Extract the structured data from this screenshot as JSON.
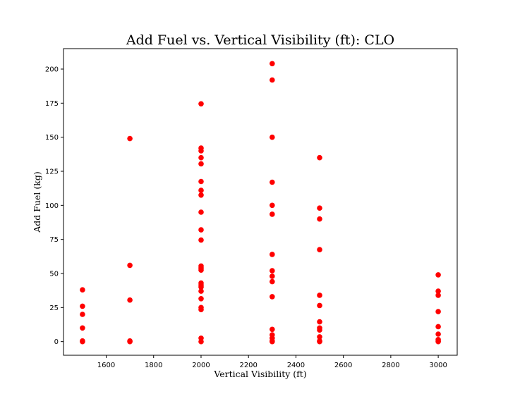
{
  "chart_data": {
    "type": "scatter",
    "title": "Add Fuel vs. Vertical Visibility (ft): CLO",
    "xlabel": "Vertical Visibility (ft)",
    "ylabel": "Add Fuel (kg)",
    "xlim": [
      1420,
      3080
    ],
    "ylim": [
      -10,
      215
    ],
    "xticks": [
      1600,
      1800,
      2000,
      2200,
      2400,
      2600,
      2800,
      3000
    ],
    "yticks": [
      0,
      25,
      50,
      75,
      100,
      125,
      150,
      175,
      200
    ],
    "grid": false,
    "marker_color": "#ff0000",
    "points": [
      {
        "x": 1500,
        "y": 38
      },
      {
        "x": 1500,
        "y": 26
      },
      {
        "x": 1500,
        "y": 20
      },
      {
        "x": 1500,
        "y": 10
      },
      {
        "x": 1500,
        "y": 0.5
      },
      {
        "x": 1500,
        "y": 0
      },
      {
        "x": 1700,
        "y": 149
      },
      {
        "x": 1700,
        "y": 56
      },
      {
        "x": 1700,
        "y": 30.5
      },
      {
        "x": 1700,
        "y": 0.5
      },
      {
        "x": 1700,
        "y": 0
      },
      {
        "x": 2000,
        "y": 174.5
      },
      {
        "x": 2000,
        "y": 142
      },
      {
        "x": 2000,
        "y": 140
      },
      {
        "x": 2000,
        "y": 135
      },
      {
        "x": 2000,
        "y": 130.5
      },
      {
        "x": 2000,
        "y": 117.5
      },
      {
        "x": 2000,
        "y": 111
      },
      {
        "x": 2000,
        "y": 107.5
      },
      {
        "x": 2000,
        "y": 95
      },
      {
        "x": 2000,
        "y": 82
      },
      {
        "x": 2000,
        "y": 74.5
      },
      {
        "x": 2000,
        "y": 55.5
      },
      {
        "x": 2000,
        "y": 54
      },
      {
        "x": 2000,
        "y": 52.5
      },
      {
        "x": 2000,
        "y": 43
      },
      {
        "x": 2000,
        "y": 41.5
      },
      {
        "x": 2000,
        "y": 40
      },
      {
        "x": 2000,
        "y": 37
      },
      {
        "x": 2000,
        "y": 31.5
      },
      {
        "x": 2000,
        "y": 25
      },
      {
        "x": 2000,
        "y": 23.5
      },
      {
        "x": 2000,
        "y": 2.5
      },
      {
        "x": 2000,
        "y": 0
      },
      {
        "x": 2300,
        "y": 204
      },
      {
        "x": 2300,
        "y": 192
      },
      {
        "x": 2300,
        "y": 150
      },
      {
        "x": 2300,
        "y": 117
      },
      {
        "x": 2300,
        "y": 100
      },
      {
        "x": 2300,
        "y": 93.5
      },
      {
        "x": 2300,
        "y": 64
      },
      {
        "x": 2300,
        "y": 52
      },
      {
        "x": 2300,
        "y": 48
      },
      {
        "x": 2300,
        "y": 44
      },
      {
        "x": 2300,
        "y": 33
      },
      {
        "x": 2300,
        "y": 9
      },
      {
        "x": 2300,
        "y": 5
      },
      {
        "x": 2300,
        "y": 2.5
      },
      {
        "x": 2300,
        "y": 0.5
      },
      {
        "x": 2300,
        "y": 0
      },
      {
        "x": 2500,
        "y": 135
      },
      {
        "x": 2500,
        "y": 98
      },
      {
        "x": 2500,
        "y": 90
      },
      {
        "x": 2500,
        "y": 67.5
      },
      {
        "x": 2500,
        "y": 34
      },
      {
        "x": 2500,
        "y": 26.5
      },
      {
        "x": 2500,
        "y": 14.5
      },
      {
        "x": 2500,
        "y": 10
      },
      {
        "x": 2500,
        "y": 8.5
      },
      {
        "x": 2500,
        "y": 3.5
      },
      {
        "x": 2500,
        "y": 0.5
      },
      {
        "x": 2500,
        "y": 0
      },
      {
        "x": 3000,
        "y": 49
      },
      {
        "x": 3000,
        "y": 37
      },
      {
        "x": 3000,
        "y": 34
      },
      {
        "x": 3000,
        "y": 22
      },
      {
        "x": 3000,
        "y": 11
      },
      {
        "x": 3000,
        "y": 5.5
      },
      {
        "x": 3000,
        "y": 1.5
      },
      {
        "x": 3000,
        "y": 0.5
      },
      {
        "x": 3000,
        "y": 0
      }
    ]
  }
}
